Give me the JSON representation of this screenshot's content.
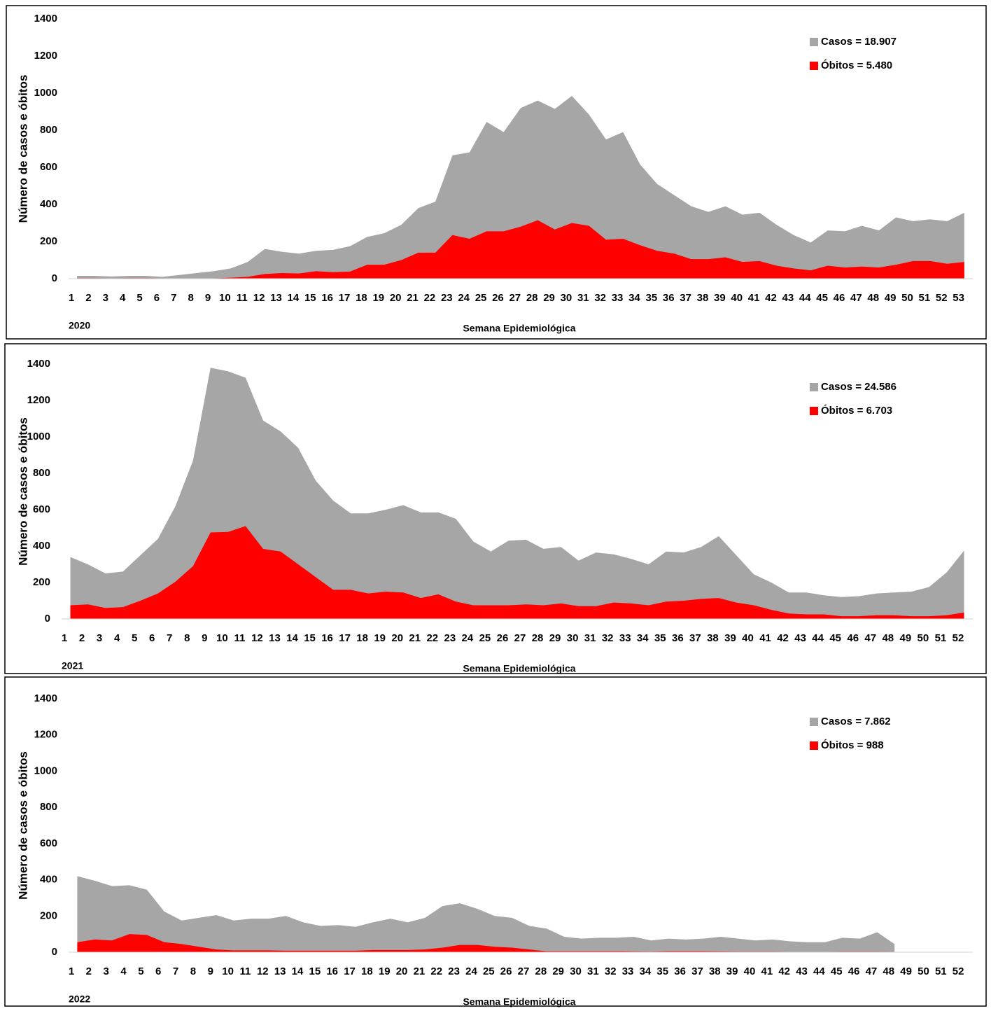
{
  "chart_data": [
    {
      "type": "area",
      "y_label": "Número de casos e óbitos",
      "x_label": "Semana Epidemiológica",
      "annotation": "2020",
      "legend": "upper right",
      "grid": false,
      "ylim": [
        0,
        1400
      ],
      "yticks": [
        0,
        200,
        400,
        600,
        800,
        1000,
        1200,
        1400
      ],
      "categories": [
        "1",
        "2",
        "3",
        "4",
        "5",
        "6",
        "7",
        "8",
        "9",
        "10",
        "11",
        "12",
        "13",
        "14",
        "15",
        "16",
        "17",
        "18",
        "19",
        "20",
        "21",
        "22",
        "23",
        "24",
        "25",
        "26",
        "27",
        "28",
        "29",
        "30",
        "31",
        "32",
        "33",
        "34",
        "35",
        "36",
        "37",
        "38",
        "39",
        "40",
        "41",
        "42",
        "43",
        "44",
        "45",
        "46",
        "47",
        "48",
        "49",
        "50",
        "51",
        "52",
        "53"
      ],
      "series": [
        {
          "name": "Casos = 18.907",
          "color": "#a6a6a6",
          "values": [
            15,
            15,
            12,
            15,
            15,
            10,
            20,
            30,
            40,
            55,
            90,
            160,
            145,
            135,
            150,
            155,
            175,
            225,
            245,
            290,
            380,
            415,
            665,
            680,
            845,
            790,
            920,
            960,
            915,
            985,
            885,
            750,
            790,
            615,
            510,
            450,
            390,
            360,
            390,
            345,
            355,
            290,
            235,
            195,
            260,
            255,
            285,
            260,
            330,
            310,
            320,
            310,
            355
          ]
        },
        {
          "name": "Óbitos = 5.480",
          "color": "#ff0000",
          "values": [
            3,
            3,
            2,
            3,
            3,
            2,
            2,
            2,
            2,
            5,
            10,
            25,
            30,
            28,
            40,
            35,
            38,
            75,
            75,
            100,
            140,
            140,
            235,
            215,
            255,
            255,
            280,
            315,
            265,
            300,
            285,
            210,
            215,
            180,
            150,
            135,
            105,
            105,
            115,
            90,
            95,
            70,
            55,
            45,
            70,
            60,
            65,
            60,
            75,
            95,
            95,
            80,
            90
          ]
        }
      ]
    },
    {
      "type": "area",
      "y_label": "Número de casos e óbitos",
      "x_label": "Semana Epidemiológica",
      "annotation": "2021",
      "legend": "upper right",
      "grid": false,
      "ylim": [
        0,
        1400
      ],
      "yticks": [
        0,
        200,
        400,
        600,
        800,
        1000,
        1200,
        1400
      ],
      "categories": [
        "1",
        "2",
        "3",
        "4",
        "5",
        "6",
        "7",
        "8",
        "9",
        "10",
        "11",
        "12",
        "13",
        "14",
        "15",
        "16",
        "17",
        "18",
        "19",
        "20",
        "21",
        "22",
        "23",
        "24",
        "25",
        "26",
        "27",
        "28",
        "29",
        "30",
        "31",
        "32",
        "33",
        "34",
        "35",
        "36",
        "37",
        "38",
        "39",
        "40",
        "41",
        "42",
        "43",
        "44",
        "45",
        "46",
        "47",
        "48",
        "49",
        "50",
        "51",
        "52"
      ],
      "series": [
        {
          "name": "Casos = 24.586",
          "color": "#a6a6a6",
          "values": [
            340,
            300,
            250,
            260,
            350,
            440,
            620,
            870,
            1380,
            1360,
            1325,
            1090,
            1030,
            940,
            760,
            650,
            580,
            580,
            600,
            625,
            585,
            585,
            550,
            425,
            370,
            430,
            435,
            385,
            395,
            320,
            365,
            355,
            330,
            300,
            370,
            365,
            395,
            455,
            350,
            245,
            200,
            145,
            145,
            130,
            120,
            125,
            140,
            145,
            150,
            175,
            255,
            375
          ]
        },
        {
          "name": "Óbitos = 6.703",
          "color": "#ff0000",
          "values": [
            75,
            80,
            60,
            65,
            100,
            140,
            205,
            290,
            475,
            478,
            510,
            385,
            370,
            300,
            230,
            160,
            160,
            140,
            150,
            145,
            115,
            135,
            95,
            75,
            75,
            75,
            80,
            75,
            85,
            70,
            70,
            90,
            85,
            75,
            95,
            100,
            110,
            115,
            90,
            75,
            50,
            30,
            25,
            25,
            15,
            15,
            20,
            20,
            15,
            15,
            20,
            35
          ]
        }
      ]
    },
    {
      "type": "area",
      "y_label": "Número de casos e óbitos",
      "x_label": "Semana Epidemiológica",
      "annotation": "2022",
      "legend": "upper right",
      "grid": false,
      "ylim": [
        0,
        1400
      ],
      "yticks": [
        0,
        200,
        400,
        600,
        800,
        1000,
        1200,
        1400
      ],
      "categories": [
        "1",
        "2",
        "3",
        "4",
        "5",
        "6",
        "7",
        "8",
        "9",
        "10",
        "11",
        "12",
        "13",
        "14",
        "15",
        "16",
        "17",
        "18",
        "19",
        "20",
        "21",
        "22",
        "23",
        "24",
        "25",
        "26",
        "27",
        "28",
        "29",
        "30",
        "31",
        "32",
        "33",
        "34",
        "35",
        "36",
        "37",
        "38",
        "39",
        "40",
        "41",
        "42",
        "43",
        "44",
        "45",
        "46",
        "47",
        "48",
        "49",
        "50",
        "51",
        "52"
      ],
      "series": [
        {
          "name": "Casos = 7.862",
          "color": "#a6a6a6",
          "values": [
            420,
            395,
            365,
            370,
            345,
            225,
            175,
            190,
            205,
            175,
            185,
            185,
            200,
            165,
            145,
            150,
            140,
            165,
            185,
            165,
            190,
            255,
            270,
            240,
            200,
            190,
            145,
            130,
            85,
            75,
            80,
            80,
            85,
            65,
            75,
            70,
            75,
            85,
            75,
            65,
            70,
            60,
            55,
            55,
            80,
            75,
            110,
            45,
            null,
            null,
            null,
            null
          ]
        },
        {
          "name": "Óbitos = 988",
          "color": "#ff0000",
          "values": [
            55,
            70,
            65,
            100,
            95,
            55,
            45,
            30,
            15,
            10,
            10,
            10,
            8,
            8,
            8,
            8,
            8,
            12,
            12,
            12,
            15,
            25,
            40,
            40,
            30,
            25,
            15,
            5,
            5,
            5,
            5,
            5,
            4,
            3,
            5,
            5,
            5,
            4,
            3,
            3,
            3,
            2,
            2,
            2,
            3,
            3,
            3,
            2,
            null,
            null,
            null,
            null
          ]
        }
      ]
    }
  ]
}
